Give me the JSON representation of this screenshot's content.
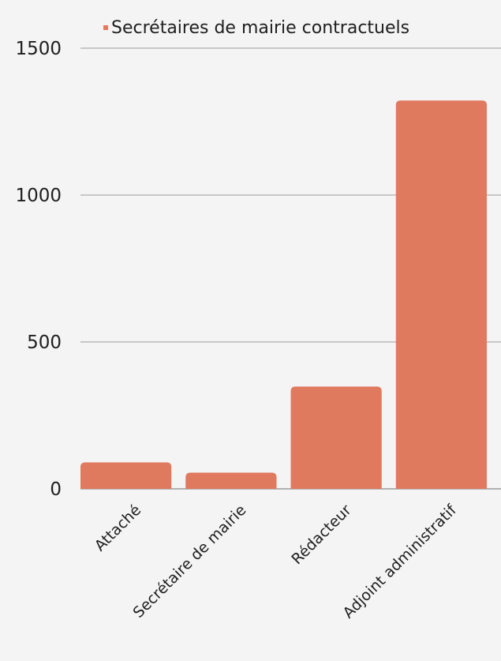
{
  "chart_data": {
    "type": "bar",
    "title": "",
    "xlabel": "",
    "ylabel": "",
    "categories": [
      "Attaché",
      "Secrétaire de mairie",
      "Rédacteur",
      "Adjoint administratif"
    ],
    "series": [
      {
        "name": "Secrétaires de mairie contractuels",
        "values": [
          90,
          55,
          348,
          1322
        ],
        "color": "#e07a5f"
      }
    ],
    "ylim": [
      0,
      1500
    ],
    "yticks": [
      0,
      500,
      1000,
      1500
    ],
    "grid": true,
    "legend_position": "top-right"
  }
}
